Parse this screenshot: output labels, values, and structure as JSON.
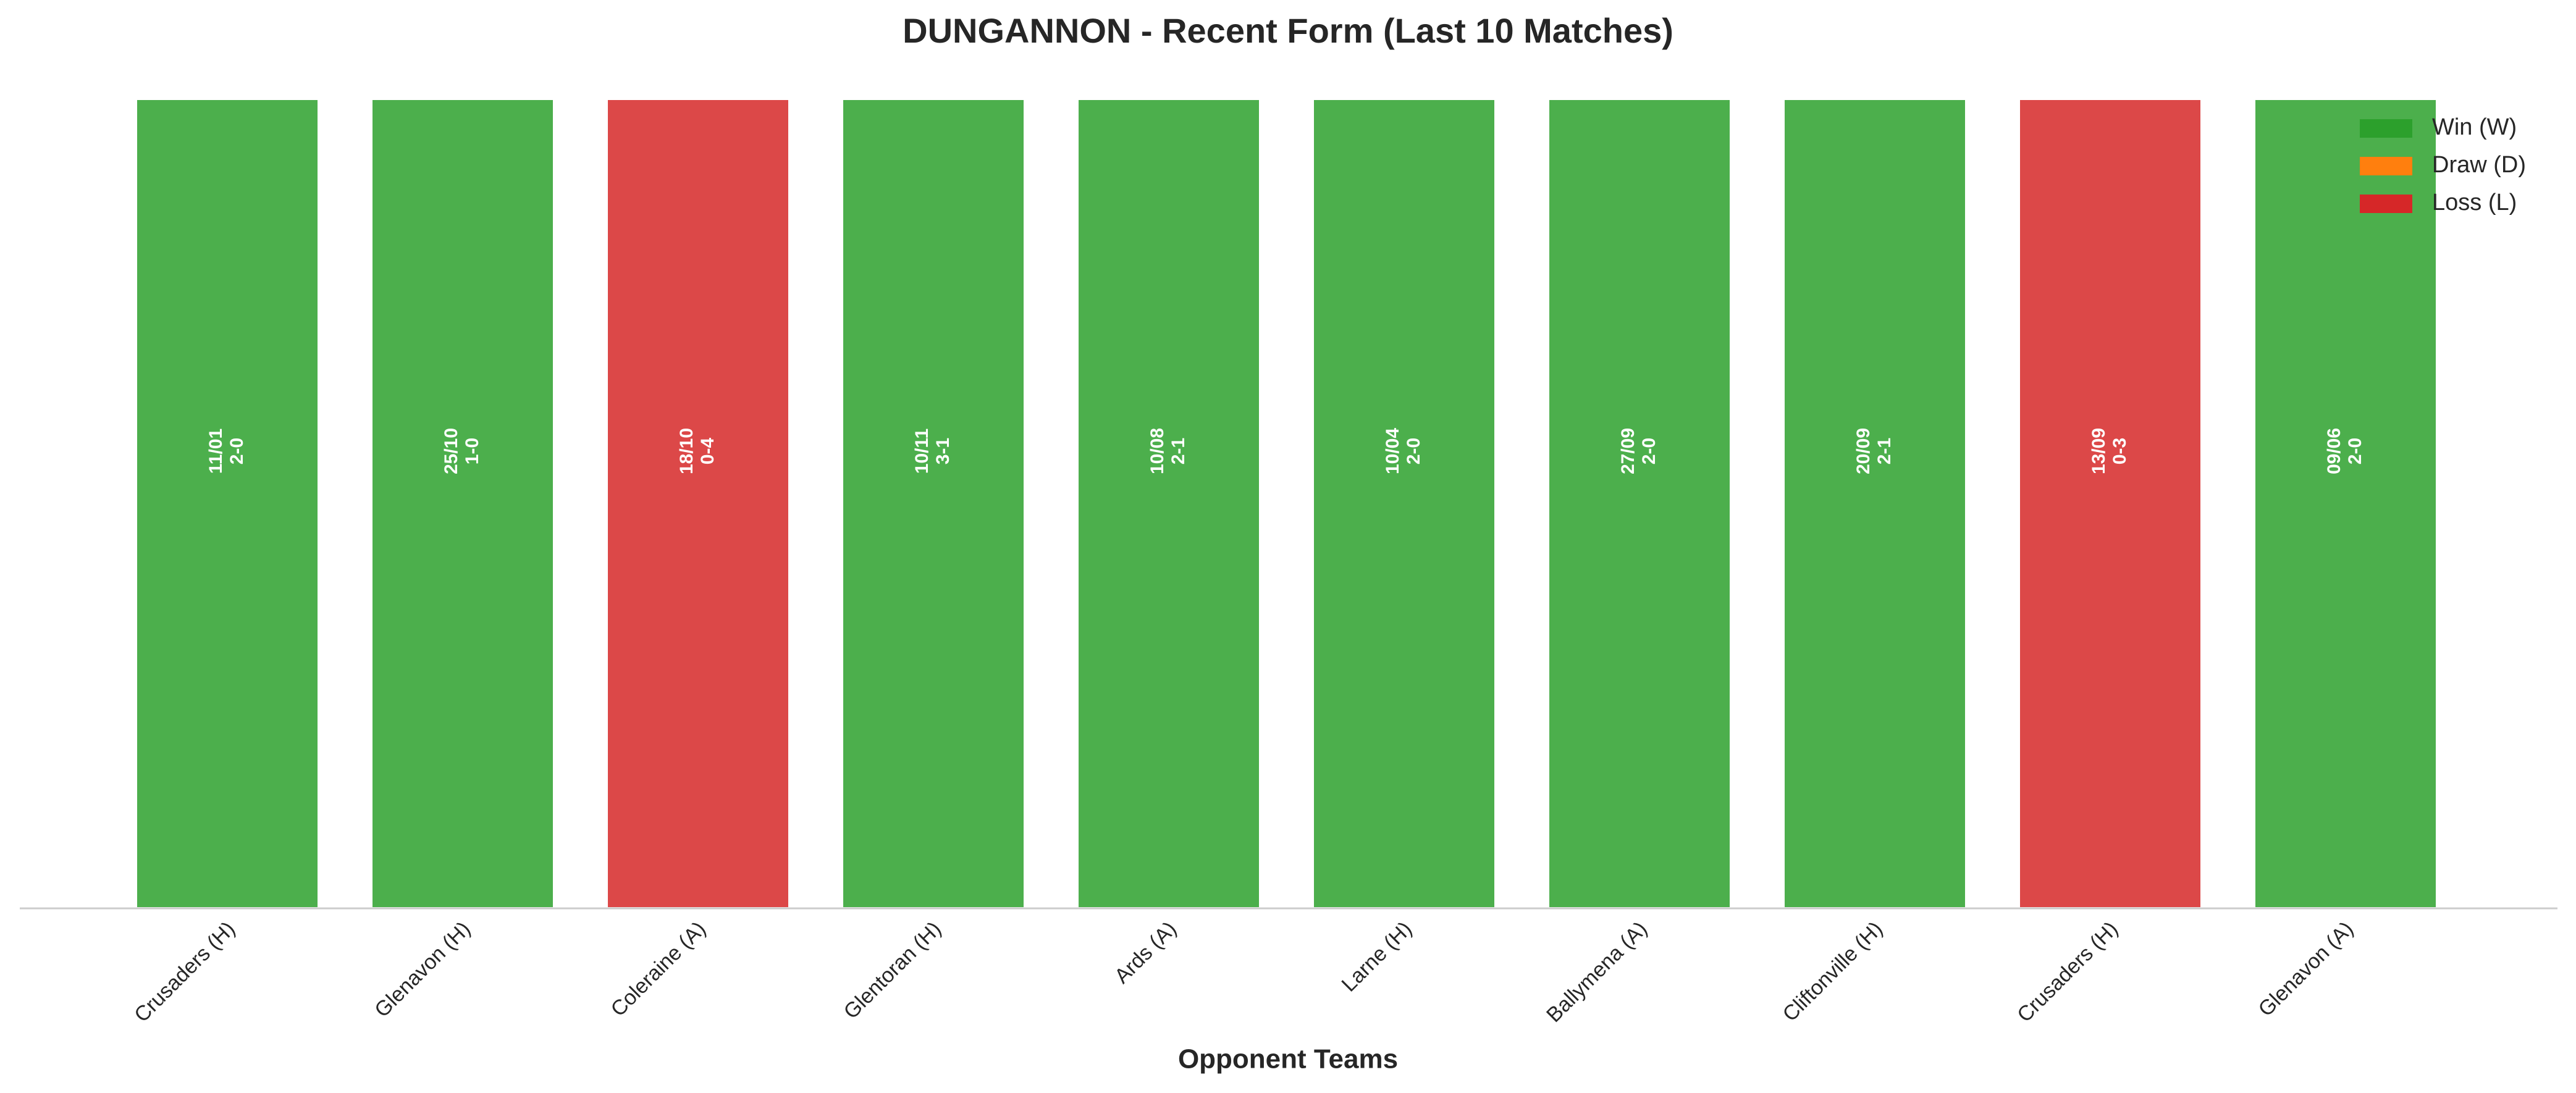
{
  "chart_data": {
    "type": "bar",
    "title": "DUNGANNON - Recent Form (Last 10 Matches)",
    "x_label": "Opponent Teams",
    "categories": [
      "Crusaders (H)",
      "Glenavon (H)",
      "Coleraine (A)",
      "Glentoran (H)",
      "Ards (A)",
      "Larne (H)",
      "Ballymena (A)",
      "Cliftonville (H)",
      "Crusaders (H)",
      "Glenavon (A)"
    ],
    "values": [
      1,
      1,
      1,
      1,
      1,
      1,
      1,
      1,
      1,
      1
    ],
    "dates": [
      "11/01",
      "25/10",
      "18/10",
      "10/11",
      "10/08",
      "10/04",
      "27/09",
      "20/09",
      "13/09",
      "09/06"
    ],
    "scores": [
      "2-0",
      "1-0",
      "0-4",
      "3-1",
      "2-1",
      "2-0",
      "2-0",
      "2-1",
      "0-3",
      "2-0"
    ],
    "bar_colors": [
      "#4caf4c",
      "#4caf4c",
      "#dc4848",
      "#4caf4c",
      "#4caf4c",
      "#4caf4c",
      "#4caf4c",
      "#4caf4c",
      "#dc4848",
      "#4caf4c"
    ],
    "ylim": [
      0,
      1
    ],
    "legend": [
      {
        "name": "Win (W)",
        "color": "#2ca02c"
      },
      {
        "name": "Draw (D)",
        "color": "#ff7f0e"
      },
      {
        "name": "Loss (L)",
        "color": "#d62728"
      }
    ],
    "legend_position": "upper right"
  }
}
